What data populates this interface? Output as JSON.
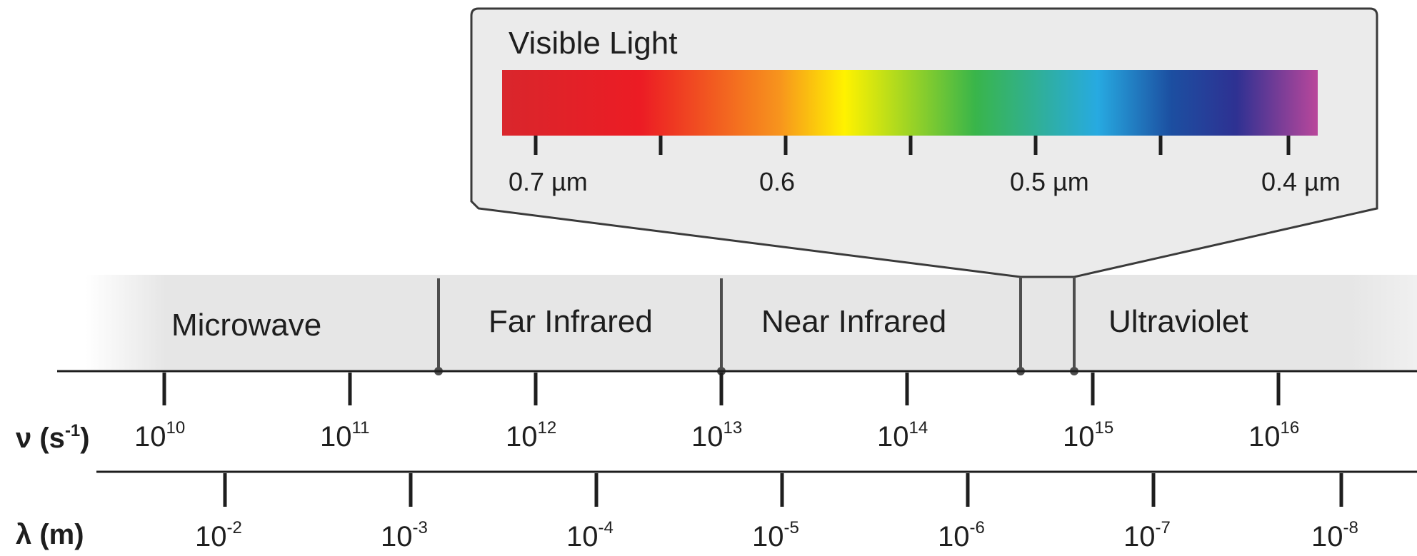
{
  "visible_light": {
    "title": "Visible Light",
    "spectrum_colors": [
      "#d9262c",
      "#ec1c24",
      "#f7941d",
      "#fff200",
      "#39b54a",
      "#27aae1",
      "#1c4fa1",
      "#2e3192",
      "#b9479b"
    ],
    "wavelength_labels": [
      "0.7 µm",
      "0.6",
      "0.5 µm",
      "0.4 µm"
    ]
  },
  "regions": [
    {
      "name": "Microwave"
    },
    {
      "name": "Far Infrared"
    },
    {
      "name": "Near Infrared"
    },
    {
      "name": "Ultraviolet"
    }
  ],
  "frequency_axis": {
    "label": "ν (s",
    "label_sup": "-1",
    "label_close": ")",
    "ticks": [
      {
        "base": "10",
        "exp": "10"
      },
      {
        "base": "10",
        "exp": "11"
      },
      {
        "base": "10",
        "exp": "12"
      },
      {
        "base": "10",
        "exp": "13"
      },
      {
        "base": "10",
        "exp": "14"
      },
      {
        "base": "10",
        "exp": "15"
      },
      {
        "base": "10",
        "exp": "16"
      }
    ]
  },
  "wavelength_axis": {
    "label": "λ (m)",
    "ticks": [
      {
        "base": "10",
        "exp": "-2"
      },
      {
        "base": "10",
        "exp": "-3"
      },
      {
        "base": "10",
        "exp": "-4"
      },
      {
        "base": "10",
        "exp": "-5"
      },
      {
        "base": "10",
        "exp": "-6"
      },
      {
        "base": "10",
        "exp": "-7"
      },
      {
        "base": "10",
        "exp": "-8"
      }
    ]
  }
}
